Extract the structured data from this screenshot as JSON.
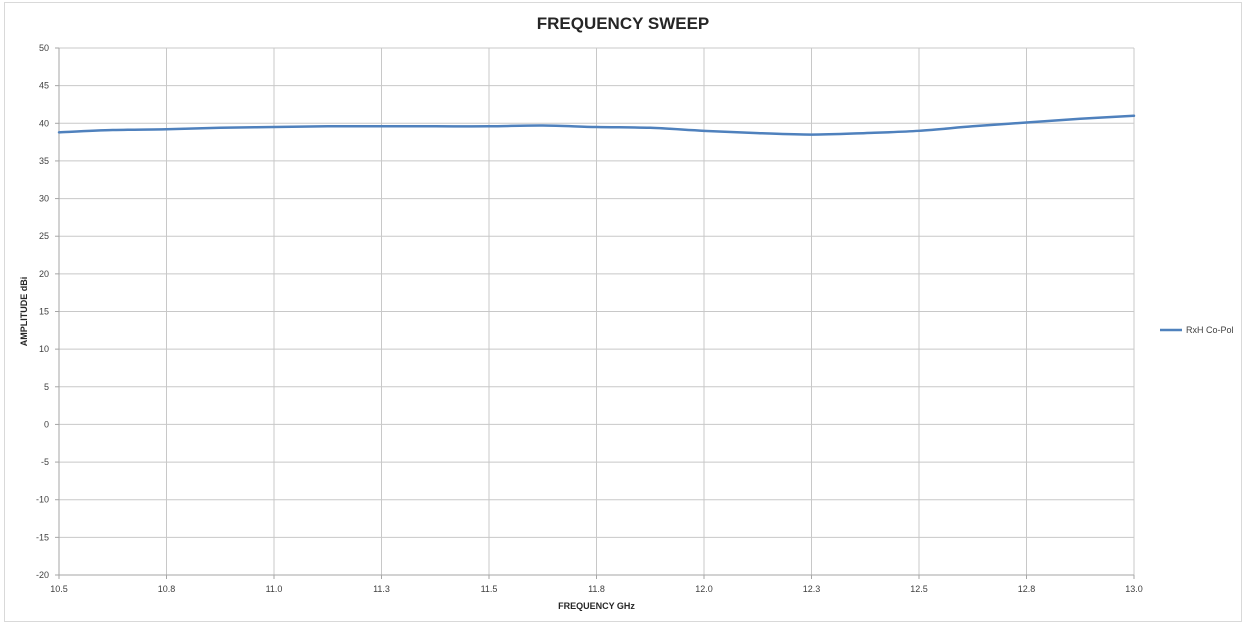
{
  "chart_data": {
    "type": "line",
    "title": "FREQUENCY SWEEP",
    "xlabel": "FREQUENCY GHz",
    "ylabel": "AMPLITUDE dBi",
    "xlim": [
      10.5,
      13.0
    ],
    "ylim": [
      -20,
      50
    ],
    "x_ticks": [
      10.5,
      10.75,
      11.0,
      11.25,
      11.5,
      11.75,
      12.0,
      12.25,
      12.5,
      12.75,
      13.0
    ],
    "x_tick_labels": [
      "10.5",
      "10.8",
      "11.0",
      "11.3",
      "11.5",
      "11.8",
      "12.0",
      "12.3",
      "12.5",
      "12.8",
      "13.0"
    ],
    "y_ticks": [
      50,
      45,
      40,
      35,
      30,
      25,
      20,
      15,
      10,
      5,
      0,
      -5,
      -10,
      -15,
      -20
    ],
    "y_tick_labels": [
      "50",
      "45",
      "40",
      "35",
      "30",
      "25",
      "20",
      "15",
      "10",
      "5",
      "0",
      "-5",
      "-10",
      "-15",
      "-20"
    ],
    "grid": true,
    "legend_position": "right",
    "series": [
      {
        "name": "RxH Co-Pol",
        "color": "#4f81bd",
        "x": [
          10.5,
          10.625,
          10.75,
          10.875,
          11.0,
          11.125,
          11.25,
          11.375,
          11.5,
          11.625,
          11.75,
          11.875,
          12.0,
          12.125,
          12.25,
          12.375,
          12.5,
          12.625,
          12.75,
          12.875,
          13.0
        ],
        "y": [
          38.8,
          39.1,
          39.2,
          39.4,
          39.5,
          39.6,
          39.6,
          39.6,
          39.6,
          39.7,
          39.5,
          39.4,
          39.0,
          38.7,
          38.5,
          38.7,
          39.0,
          39.6,
          40.1,
          40.6,
          41.0
        ]
      }
    ]
  }
}
